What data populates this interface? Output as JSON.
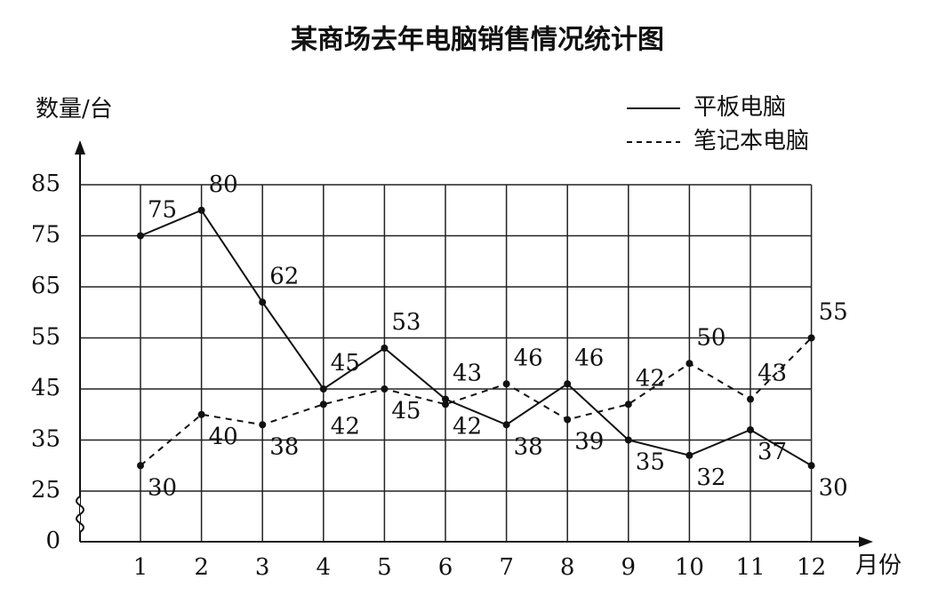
{
  "chart_data": {
    "type": "line",
    "title": "某商场去年电脑销售情况统计图",
    "y_label": "数量/台",
    "x_label": "月份",
    "categories": [
      "1",
      "2",
      "3",
      "4",
      "5",
      "6",
      "7",
      "8",
      "9",
      "10",
      "11",
      "12"
    ],
    "series": [
      {
        "name": "平板电脑",
        "color": "#111111",
        "line_style": "solid",
        "values": [
          75,
          80,
          62,
          45,
          53,
          43,
          38,
          46,
          35,
          32,
          37,
          30
        ]
      },
      {
        "name": "笔记本电脑",
        "color": "#111111",
        "line_style": "dashed",
        "values": [
          30,
          40,
          38,
          42,
          45,
          42,
          46,
          39,
          42,
          50,
          43,
          55
        ]
      }
    ],
    "ylim": [
      0,
      85
    ],
    "yticks": [
      0,
      25,
      35,
      45,
      55,
      65,
      75,
      85
    ],
    "axis_break": true,
    "grid": true,
    "legend": "top-right"
  }
}
